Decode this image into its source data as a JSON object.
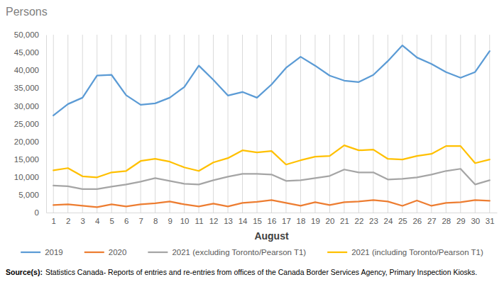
{
  "chart_data": {
    "type": "line",
    "y_label": "Persons",
    "x_label": "August",
    "source_label": "Source(s):",
    "source_text": "Statistics Canada- Reports of entries and re-entries from offices of the Canada Border Services Agency, Primary Inspection Kiosks.",
    "x": [
      1,
      2,
      3,
      4,
      5,
      6,
      7,
      8,
      9,
      10,
      11,
      12,
      13,
      14,
      15,
      16,
      17,
      18,
      19,
      20,
      21,
      22,
      23,
      24,
      25,
      26,
      27,
      28,
      29,
      30,
      31
    ],
    "xlim": [
      0.5,
      31.5
    ],
    "xticks": [
      1,
      2,
      3,
      4,
      5,
      6,
      7,
      8,
      9,
      10,
      11,
      12,
      13,
      14,
      15,
      16,
      17,
      18,
      19,
      20,
      21,
      22,
      23,
      24,
      25,
      26,
      27,
      28,
      29,
      30,
      31
    ],
    "ylim": [
      0,
      50000
    ],
    "yticks": [
      0,
      {
        "value": 5000,
        "label": "5,000"
      },
      {
        "value": 10000,
        "label": "10,000"
      },
      {
        "value": 15000,
        "label": "15,000"
      },
      {
        "value": 20000,
        "label": "20,000"
      },
      {
        "value": 25000,
        "label": "25,000"
      },
      {
        "value": 30000,
        "label": "30,000"
      },
      {
        "value": 35000,
        "label": "35,000"
      },
      {
        "value": 40000,
        "label": "40,000"
      },
      {
        "value": 45000,
        "label": "45,000"
      },
      {
        "value": 50000,
        "label": "50,000"
      }
    ],
    "grid": "x",
    "legend": "bottom",
    "series": [
      {
        "name": "2019",
        "color": "#5b9bd5",
        "values": [
          27300,
          30500,
          32300,
          38500,
          38700,
          33000,
          30300,
          30700,
          32300,
          35300,
          41300,
          37300,
          32900,
          33900,
          32300,
          36000,
          40700,
          43800,
          41300,
          38500,
          37100,
          36700,
          38700,
          42600,
          47000,
          43600,
          41800,
          39500,
          37900,
          39500,
          45400
        ]
      },
      {
        "name": "2020",
        "color": "#ed7d31",
        "values": [
          2100,
          2300,
          1900,
          1500,
          2300,
          1700,
          2300,
          2600,
          3100,
          2300,
          1700,
          2500,
          1700,
          2700,
          3000,
          3500,
          2700,
          1900,
          2900,
          2100,
          2900,
          3100,
          3500,
          3100,
          1900,
          3400,
          1900,
          2700,
          2900,
          3500,
          3300
        ]
      },
      {
        "name": "2021 (excluding Toronto/Pearson T1)",
        "color": "#a5a5a5",
        "values": [
          7600,
          7400,
          6600,
          6600,
          7300,
          7900,
          8700,
          9700,
          8900,
          8100,
          7900,
          9100,
          10100,
          10900,
          10900,
          10700,
          8900,
          9100,
          9700,
          10300,
          12100,
          11300,
          11300,
          9300,
          9500,
          9900,
          10700,
          11700,
          12300,
          7900,
          9100
        ]
      },
      {
        "name": "2021 (including Toronto/Pearson T1)",
        "color": "#ffc000",
        "values": [
          11900,
          12500,
          10200,
          9900,
          11300,
          11700,
          14500,
          15100,
          14300,
          12700,
          11700,
          14100,
          15300,
          17500,
          16900,
          17300,
          13500,
          14700,
          15700,
          15900,
          18900,
          17500,
          17700,
          15100,
          14900,
          15900,
          16500,
          18700,
          18700,
          13900,
          14900
        ]
      }
    ]
  }
}
